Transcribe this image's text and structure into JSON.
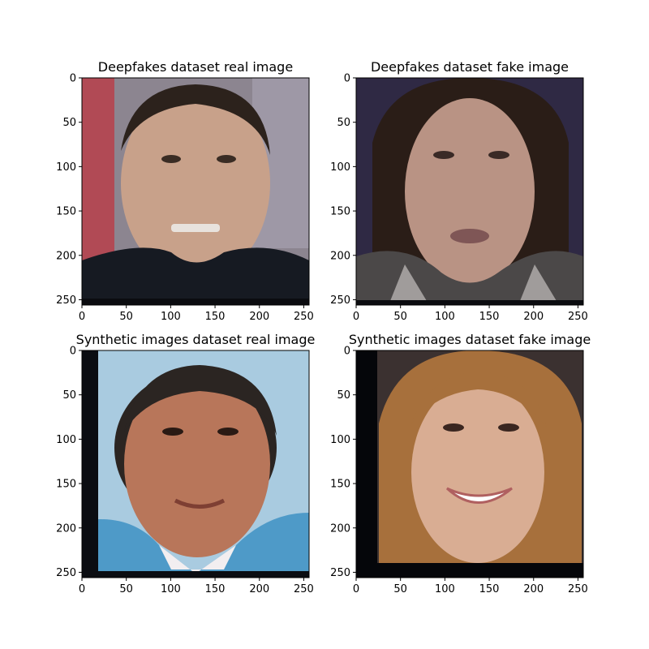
{
  "figure": {
    "panels": [
      {
        "id": "p1",
        "title": "Deepfakes dataset real image",
        "image": {
          "bg_top": "#8c8590",
          "bg_left": "#b14a55",
          "skin": "#c8a18a",
          "hair": "#2c221c",
          "jacket": "#161a22",
          "accent": "#e8e2dd",
          "dark_band_bottom": true,
          "black_left_strip": false
        }
      },
      {
        "id": "p2",
        "title": "Deepfakes dataset fake image",
        "image": {
          "bg_top": "#2f2944",
          "bg_left": "#3a3352",
          "skin": "#b99384",
          "hair": "#2a1d17",
          "jacket": "#4b4848",
          "accent": "#d9d5d3",
          "dark_band_bottom": true,
          "black_left_strip": false
        }
      },
      {
        "id": "p3",
        "title": "Synthetic images dataset real image",
        "image": {
          "bg_top": "#a9cbe0",
          "bg_left": "#0b0d12",
          "skin": "#b8765a",
          "hair": "#2b2522",
          "jacket": "#4e9ac8",
          "accent": "#f2eef0",
          "dark_band_bottom": true,
          "black_left_strip": true
        }
      },
      {
        "id": "p4",
        "title": "Synthetic images dataset fake image",
        "image": {
          "bg_top": "#3b3130",
          "bg_left": "#05060a",
          "skin": "#d9ad93",
          "hair": "#a7703c",
          "jacket": "#c9967a",
          "accent": "#ffffff",
          "dark_band_bottom": true,
          "black_left_strip": true
        }
      }
    ],
    "x_ticks": [
      0,
      50,
      100,
      150,
      200,
      250
    ],
    "y_ticks": [
      0,
      50,
      100,
      150,
      200,
      250
    ],
    "image_extent": [
      0,
      256
    ]
  }
}
